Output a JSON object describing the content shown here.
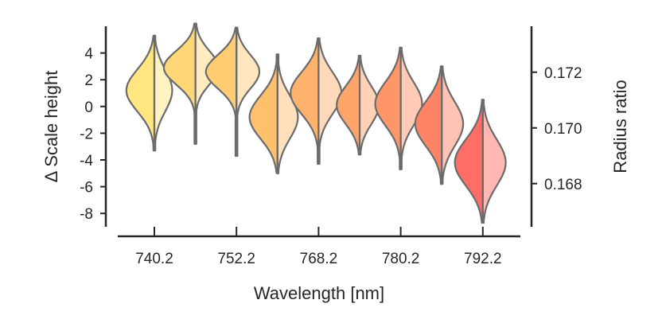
{
  "chart_data": {
    "type": "violin",
    "title": "",
    "xlabel": "Wavelength [nm]",
    "ylabel_left": "Δ Scale height",
    "ylabel_right": "Radius ratio",
    "categories": [
      "740.2",
      "746.2",
      "752.2",
      "760.2",
      "768.2",
      "774.2",
      "780.2",
      "786.2",
      "792.2"
    ],
    "x_tick_labels": [
      "740.2",
      "752.2",
      "768.2",
      "780.2",
      "792.2"
    ],
    "x_tick_categories": [
      "740.2",
      "752.2",
      "768.2",
      "780.2",
      "792.2"
    ],
    "y_left_range": [
      -9,
      6
    ],
    "y_left_ticks": [
      4,
      2,
      0,
      -2,
      -4,
      -6,
      -8
    ],
    "y_left_tick_labels": [
      "4",
      "2",
      "0",
      "-2",
      "-4",
      "-6",
      "-8"
    ],
    "y_right_range": [
      0.16645,
      0.17365
    ],
    "y_right_ticks": [
      0.172,
      0.17,
      0.168
    ],
    "y_right_tick_labels": [
      "0.172",
      "0.170",
      "0.168"
    ],
    "series": [
      {
        "category": "740.2",
        "center": 1.2,
        "min": -3.3,
        "max": 5.3,
        "left_width": 0.55,
        "right_width": 0.35,
        "color_left": "#FFE680",
        "color_right": "#FFF3C4"
      },
      {
        "category": "746.2",
        "center": 2.9,
        "min": -2.8,
        "max": 6.2,
        "left_width": 0.62,
        "right_width": 0.45,
        "color_left": "#FFD777",
        "color_right": "#FFECC2"
      },
      {
        "category": "752.2",
        "center": 2.6,
        "min": -3.7,
        "max": 5.9,
        "left_width": 0.6,
        "right_width": 0.45,
        "color_left": "#FFCC72",
        "color_right": "#FFE6BF"
      },
      {
        "category": "760.2",
        "center": -0.8,
        "min": -5.0,
        "max": 3.9,
        "left_width": 0.55,
        "right_width": 0.4,
        "color_left": "#FFC06E",
        "color_right": "#FFE0BC"
      },
      {
        "category": "768.2",
        "center": 1.0,
        "min": -4.3,
        "max": 5.1,
        "left_width": 0.55,
        "right_width": 0.45,
        "color_left": "#FFB26C",
        "color_right": "#FFD9BA"
      },
      {
        "category": "774.2",
        "center": 0.1,
        "min": -3.6,
        "max": 3.8,
        "left_width": 0.45,
        "right_width": 0.38,
        "color_left": "#FFA46A",
        "color_right": "#FFD2B8"
      },
      {
        "category": "780.2",
        "center": 0.2,
        "min": -4.7,
        "max": 4.4,
        "left_width": 0.5,
        "right_width": 0.42,
        "color_left": "#FF9668",
        "color_right": "#FFCBB6"
      },
      {
        "category": "786.2",
        "center": -1.3,
        "min": -5.8,
        "max": 3.0,
        "left_width": 0.52,
        "right_width": 0.42,
        "color_left": "#FF8466",
        "color_right": "#FFC2B4"
      },
      {
        "category": "792.2",
        "center": -4.2,
        "min": -8.7,
        "max": 0.5,
        "left_width": 0.55,
        "right_width": 0.45,
        "color_left": "#FF6E66",
        "color_right": "#FFB8B4"
      }
    ]
  }
}
